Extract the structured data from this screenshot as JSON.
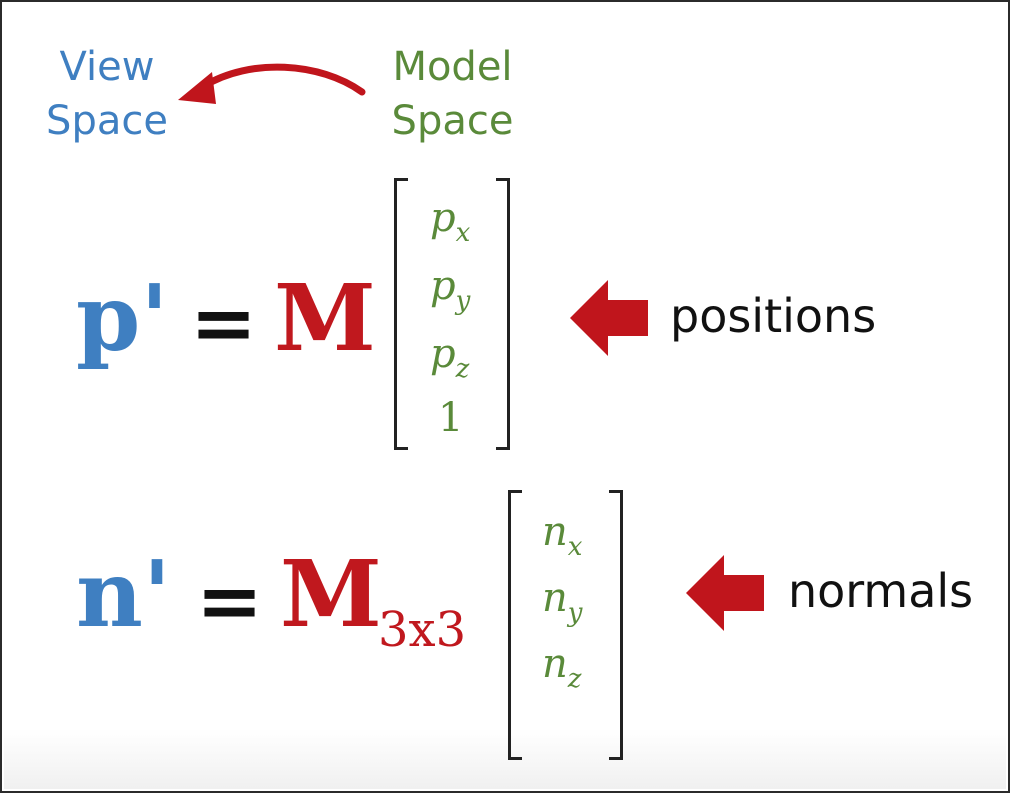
{
  "labels": {
    "view_line1": "View",
    "view_line2": "Space",
    "model_line1": "Model",
    "model_line2": "Space"
  },
  "equation_positions": {
    "lhs": "p'",
    "equals": "=",
    "matrix": "M",
    "vector": [
      {
        "base": "p",
        "sub": "x"
      },
      {
        "base": "p",
        "sub": "y"
      },
      {
        "base": "p",
        "sub": "z"
      },
      {
        "base": "1",
        "sub": ""
      }
    ],
    "annotation": "positions"
  },
  "equation_normals": {
    "lhs": "n'",
    "equals": "=",
    "matrix": "M",
    "matrix_sub": "3x3",
    "vector": [
      {
        "base": "n",
        "sub": "x"
      },
      {
        "base": "n",
        "sub": "y"
      },
      {
        "base": "n",
        "sub": "z"
      }
    ],
    "annotation": "normals"
  },
  "colors": {
    "view_blue": "#3f7fc1",
    "model_green": "#5a8a3a",
    "matrix_red": "#c0181e",
    "arrow_red": "#c0151c"
  }
}
